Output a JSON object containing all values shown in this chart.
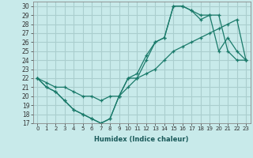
{
  "background_color": "#c8eaea",
  "grid_color": "#aacece",
  "line_color": "#1a7a6a",
  "xlabel": "Humidex (Indice chaleur)",
  "xlim": [
    -0.5,
    23.5
  ],
  "ylim": [
    17,
    30.5
  ],
  "yticks": [
    17,
    18,
    19,
    20,
    21,
    22,
    23,
    24,
    25,
    26,
    27,
    28,
    29,
    30
  ],
  "xticks": [
    0,
    1,
    2,
    3,
    4,
    5,
    6,
    7,
    8,
    9,
    10,
    11,
    12,
    13,
    14,
    15,
    16,
    17,
    18,
    19,
    20,
    21,
    22,
    23
  ],
  "line1_x": [
    0,
    1,
    2,
    3,
    4,
    5,
    6,
    7,
    8,
    9,
    10,
    11,
    12,
    13,
    14,
    15,
    16,
    17,
    18,
    19,
    20,
    21,
    22,
    23
  ],
  "line1_y": [
    22,
    21,
    20.5,
    19.5,
    18.5,
    18,
    17.5,
    17,
    17.5,
    20,
    22,
    22,
    24,
    26,
    26.5,
    30,
    30,
    29.5,
    29,
    29,
    25,
    26.5,
    25,
    24
  ],
  "line2_x": [
    0,
    1,
    2,
    3,
    4,
    5,
    6,
    7,
    8,
    9,
    10,
    11,
    12,
    13,
    14,
    15,
    16,
    17,
    18,
    19,
    20,
    21,
    22,
    23
  ],
  "line2_y": [
    22,
    21.5,
    21,
    21,
    20.5,
    20,
    20,
    19.5,
    20,
    20,
    21,
    22,
    22.5,
    23,
    24,
    25,
    25.5,
    26,
    26.5,
    27,
    27.5,
    28,
    28.5,
    24
  ],
  "line3_x": [
    0,
    1,
    2,
    3,
    4,
    5,
    6,
    7,
    8,
    9,
    10,
    11,
    12,
    13,
    14,
    15,
    16,
    17,
    18,
    19,
    20,
    21,
    22,
    23
  ],
  "line3_y": [
    22,
    21,
    20.5,
    19.5,
    18.5,
    18,
    17.5,
    17,
    17.5,
    20,
    22,
    22.5,
    24.5,
    26,
    26.5,
    30,
    30,
    29.5,
    28.5,
    29,
    29,
    25,
    24,
    24
  ]
}
